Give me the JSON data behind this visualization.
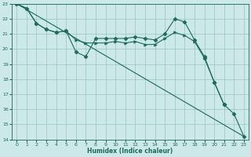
{
  "xlabel": "Humidex (Indice chaleur)",
  "background_color": "#cce8e8",
  "line_color": "#1a6b5a",
  "xlim": [
    -0.5,
    23.5
  ],
  "ylim": [
    14,
    23
  ],
  "yticks": [
    14,
    15,
    16,
    17,
    18,
    19,
    20,
    21,
    22,
    23
  ],
  "xticks": [
    0,
    1,
    2,
    3,
    4,
    5,
    6,
    7,
    8,
    9,
    10,
    11,
    12,
    13,
    14,
    15,
    16,
    17,
    18,
    19,
    20,
    21,
    22,
    23
  ],
  "lines": [
    {
      "x": [
        0,
        23
      ],
      "y": [
        23,
        14.2
      ],
      "marker": "None",
      "markersize": 0
    },
    {
      "x": [
        0,
        1,
        2,
        3,
        4,
        5,
        6,
        7,
        8,
        9,
        10,
        11,
        12,
        13,
        14,
        15,
        16,
        17,
        18,
        19,
        20,
        21
      ],
      "y": [
        23,
        22.7,
        21.7,
        21.3,
        21.1,
        21.2,
        19.8,
        19.5,
        20.7,
        20.7,
        20.7,
        20.7,
        20.8,
        20.7,
        20.6,
        21.0,
        22.0,
        21.8,
        20.6,
        19.5,
        17.8,
        16.3
      ],
      "marker": "D",
      "markersize": 2.5
    },
    {
      "x": [
        0,
        1,
        2,
        3,
        4,
        5,
        6,
        7,
        8,
        9,
        10,
        11,
        12,
        13,
        14,
        15,
        16,
        17,
        18,
        19
      ],
      "y": [
        23,
        22.7,
        21.7,
        21.3,
        21.1,
        21.2,
        20.6,
        20.4,
        20.4,
        20.4,
        20.5,
        20.4,
        20.5,
        20.3,
        20.3,
        20.7,
        21.1,
        20.9,
        20.5,
        19.4
      ],
      "marker": ">",
      "markersize": 2.5
    },
    {
      "x": [
        19,
        20,
        21,
        22,
        23
      ],
      "y": [
        19.4,
        17.8,
        16.3,
        15.7,
        14.2
      ],
      "marker": "D",
      "markersize": 2.5
    }
  ]
}
